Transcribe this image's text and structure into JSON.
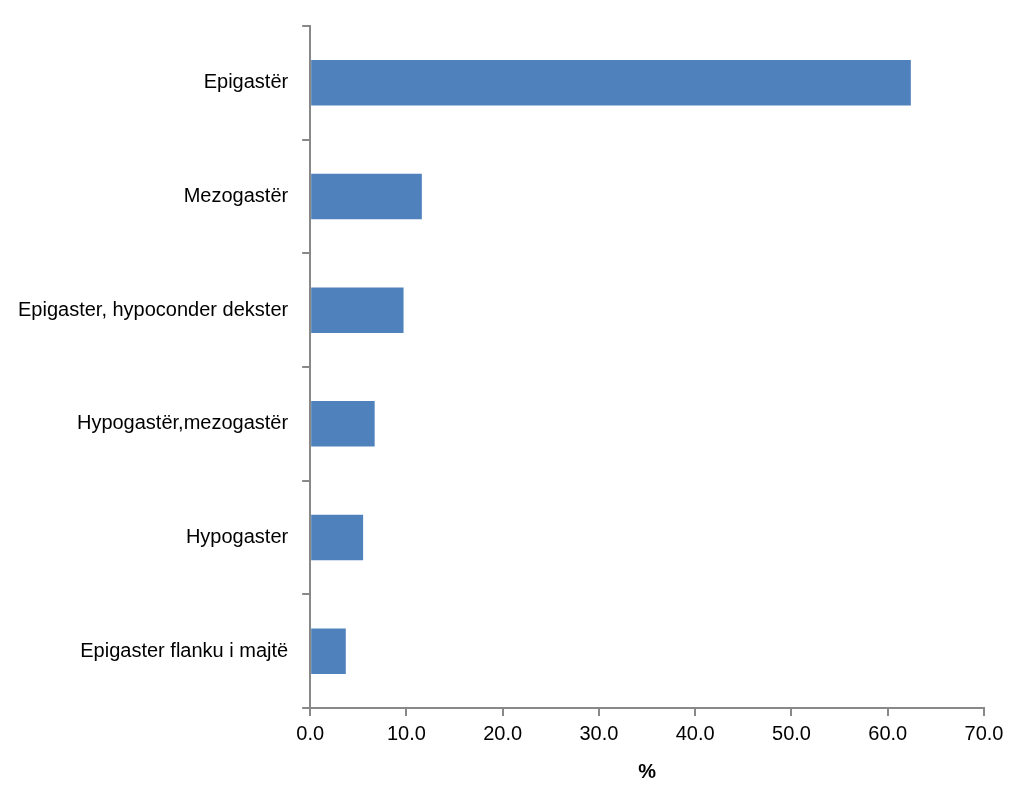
{
  "chart_data": {
    "type": "bar",
    "orientation": "horizontal",
    "xlabel": "%",
    "categories": [
      "Epigastër",
      "Mezogastër",
      "Epigaster, hypoconder dekster",
      "Hypogastër,mezogastër",
      "Hypogaster",
      "Epigaster flanku i majtë"
    ],
    "values": [
      62.4,
      11.6,
      9.7,
      6.7,
      5.5,
      3.7
    ],
    "color": "#4f81bd",
    "xlim": [
      0,
      70
    ],
    "xticks": [
      {
        "value": 0,
        "label": "0.0"
      },
      {
        "value": 10,
        "label": "10.0"
      },
      {
        "value": 20,
        "label": "20.0"
      },
      {
        "value": 30,
        "label": "30.0"
      },
      {
        "value": 40,
        "label": "40.0"
      },
      {
        "value": 50,
        "label": "50.0"
      },
      {
        "value": 60,
        "label": "60.0"
      },
      {
        "value": 70,
        "label": "70.0"
      }
    ],
    "grid": false,
    "legend": false
  }
}
